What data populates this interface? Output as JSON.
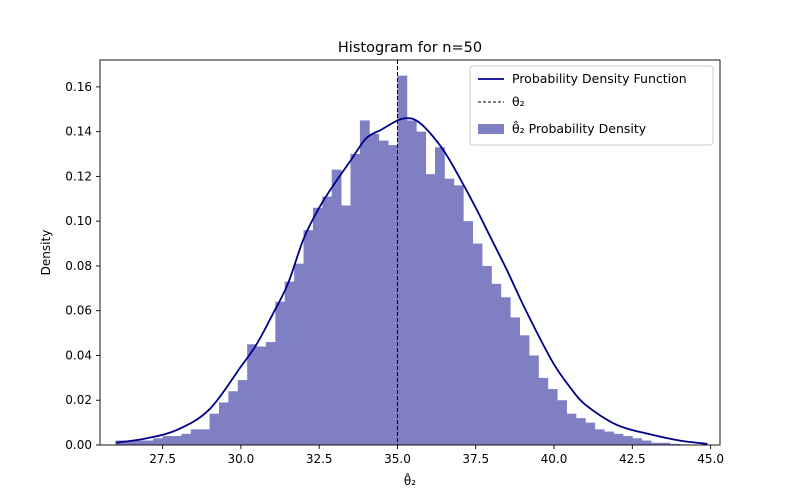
{
  "chart_data": {
    "type": "histogram",
    "title": "Histogram for n=50",
    "xlabel": "θ̂₂",
    "ylabel": "Density",
    "xlim": [
      25.5,
      45.3
    ],
    "ylim": [
      0,
      0.172
    ],
    "x_ticks": [
      27.5,
      30.0,
      32.5,
      35.0,
      37.5,
      40.0,
      42.5,
      45.0
    ],
    "x_tick_labels": [
      "27.5",
      "30.0",
      "32.5",
      "35.0",
      "37.5",
      "40.0",
      "42.5",
      "45.0"
    ],
    "y_ticks": [
      0.0,
      0.02,
      0.04,
      0.06,
      0.08,
      0.1,
      0.12,
      0.14,
      0.16
    ],
    "y_tick_labels": [
      "0.00",
      "0.02",
      "0.04",
      "0.06",
      "0.08",
      "0.10",
      "0.12",
      "0.14",
      "0.16"
    ],
    "bins": {
      "edges_start": 26.0,
      "bin_width": 0.3,
      "values": [
        0.002,
        0.002,
        0.002,
        0.002,
        0.003,
        0.004,
        0.004,
        0.005,
        0.007,
        0.007,
        0.014,
        0.019,
        0.024,
        0.029,
        0.045,
        0.044,
        0.046,
        0.064,
        0.073,
        0.081,
        0.096,
        0.106,
        0.111,
        0.123,
        0.107,
        0.13,
        0.145,
        0.139,
        0.136,
        0.134,
        0.165,
        0.145,
        0.14,
        0.121,
        0.133,
        0.119,
        0.116,
        0.1,
        0.09,
        0.08,
        0.072,
        0.066,
        0.057,
        0.049,
        0.04,
        0.03,
        0.025,
        0.02,
        0.014,
        0.012,
        0.01,
        0.007,
        0.006,
        0.005,
        0.004,
        0.003,
        0.002,
        0.001,
        0.001,
        0.0005,
        0.0003,
        0.0002,
        0.0001
      ]
    },
    "pdf_curve": {
      "x": [
        26.0,
        27.0,
        28.0,
        29.0,
        30.0,
        30.5,
        31.0,
        31.5,
        32.0,
        32.5,
        33.0,
        33.5,
        34.0,
        34.5,
        35.0,
        35.3,
        35.6,
        36.0,
        36.5,
        37.0,
        37.5,
        38.0,
        38.5,
        39.0,
        39.5,
        40.0,
        40.5,
        41.0,
        42.0,
        43.0,
        44.0,
        44.9
      ],
      "y": [
        0.001,
        0.003,
        0.007,
        0.016,
        0.035,
        0.045,
        0.058,
        0.072,
        0.092,
        0.106,
        0.117,
        0.127,
        0.137,
        0.141,
        0.145,
        0.146,
        0.145,
        0.14,
        0.131,
        0.119,
        0.106,
        0.092,
        0.078,
        0.063,
        0.049,
        0.036,
        0.026,
        0.018,
        0.009,
        0.005,
        0.002,
        0.0005
      ]
    },
    "reference_line": {
      "x": 35.0,
      "style": "dashed"
    },
    "legend": {
      "position": "upper right",
      "entries": [
        {
          "label": "Probability Density Function",
          "kind": "line"
        },
        {
          "label": "θ₂",
          "kind": "dashed"
        },
        {
          "label": "θ̂₂ Probability Density",
          "kind": "patch"
        }
      ]
    },
    "colors": {
      "bars": "#7f7fc4",
      "pdf_line": "#00008b",
      "reference_line": "#000000",
      "axes": "#000000"
    },
    "grid": false
  }
}
